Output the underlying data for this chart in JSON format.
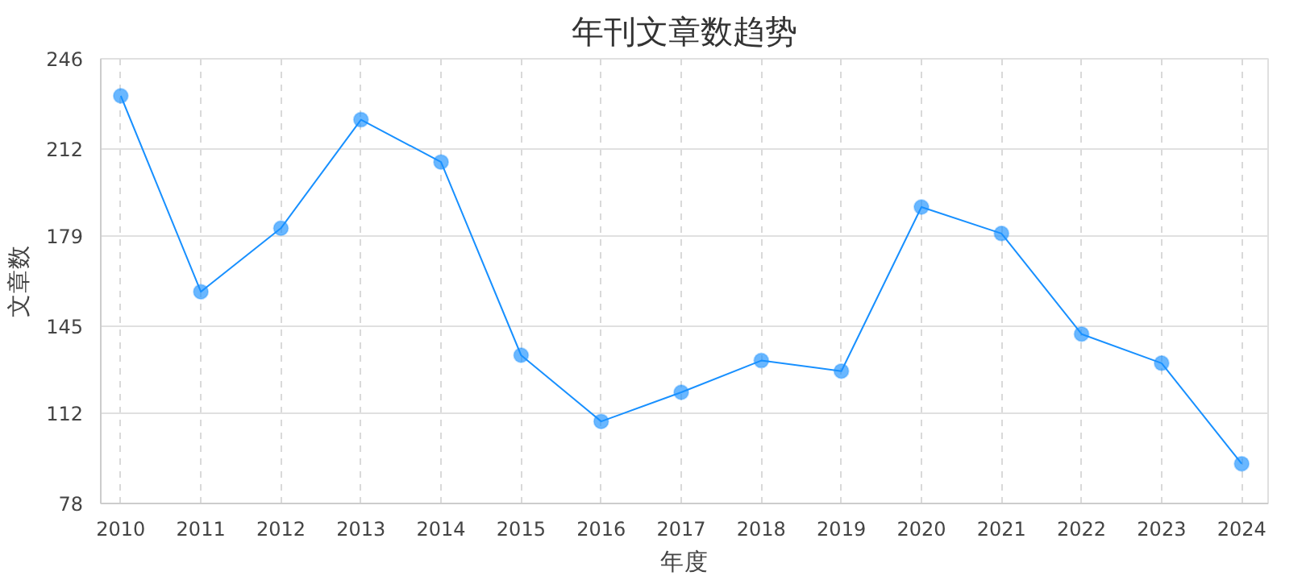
{
  "chart_data": {
    "type": "line",
    "title": "年刊文章数趋势",
    "xlabel": "年度",
    "ylabel": "文章数",
    "categories": [
      "2010",
      "2011",
      "2012",
      "2013",
      "2014",
      "2015",
      "2016",
      "2017",
      "2018",
      "2019",
      "2020",
      "2021",
      "2022",
      "2023",
      "2024"
    ],
    "series": [
      {
        "color": "#1890ff",
        "values": [
          232,
          158,
          182,
          223,
          207,
          134,
          109,
          120,
          132,
          128,
          190,
          180,
          142,
          131,
          93
        ]
      }
    ],
    "ylim": [
      78,
      246
    ],
    "yticks": [
      78,
      112,
      145,
      179,
      212,
      246
    ],
    "grid": true,
    "marker": "circle",
    "line_style": "solid"
  }
}
